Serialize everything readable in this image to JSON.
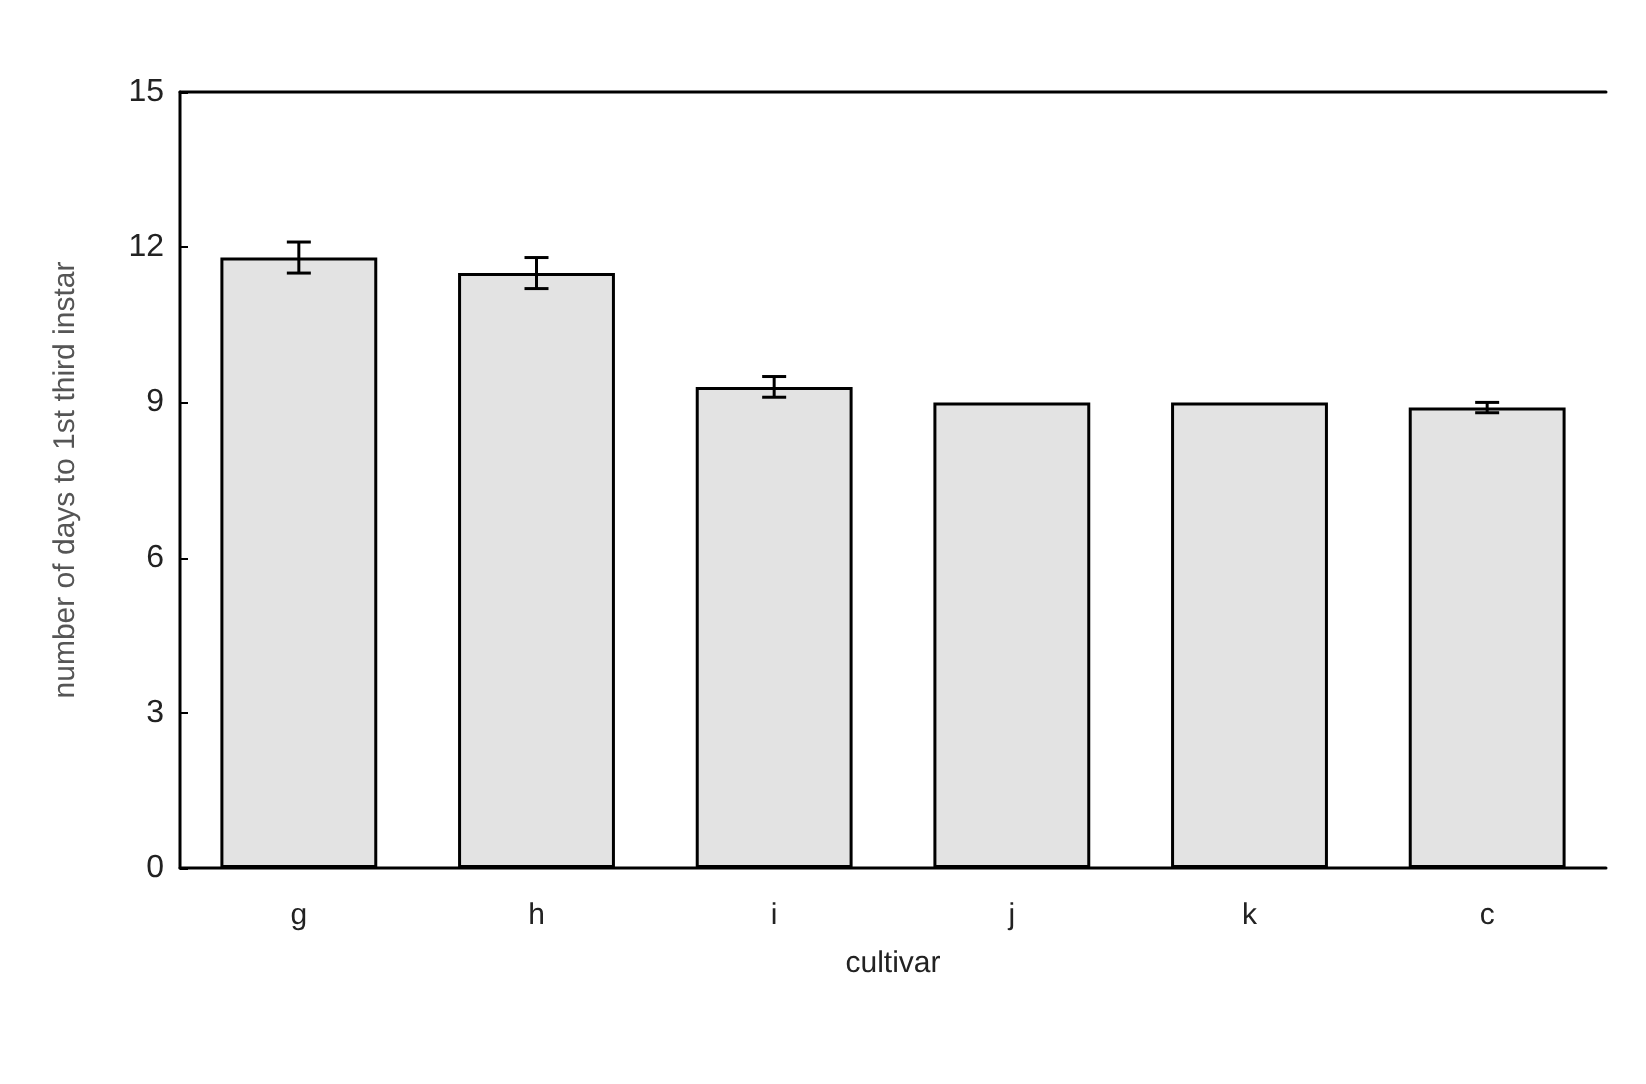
{
  "chart_data": {
    "type": "bar",
    "xlabel": "cultivar",
    "ylabel": "number of days to 1st third instar",
    "categories": [
      "g",
      "h",
      "i",
      "j",
      "k",
      "c"
    ],
    "values": [
      11.8,
      11.5,
      9.3,
      9.0,
      9.0,
      8.9
    ],
    "errors": [
      0.3,
      0.3,
      0.2,
      null,
      null,
      0.1
    ],
    "color": "#e3e3e3",
    "ylim": [
      0,
      15
    ],
    "yticks": [
      0,
      3,
      6,
      9,
      12,
      15
    ],
    "grid": false
  }
}
